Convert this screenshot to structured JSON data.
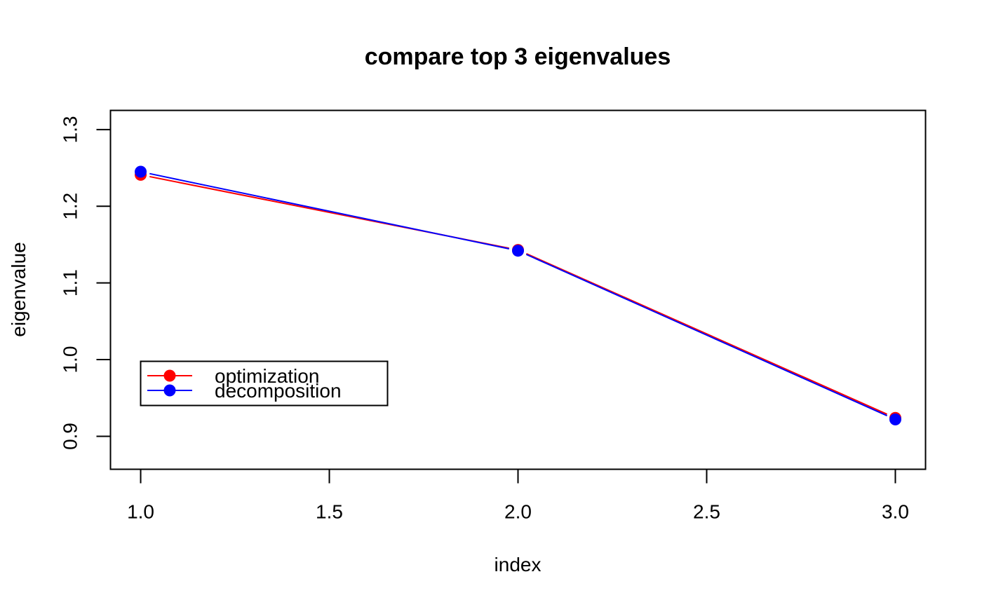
{
  "chart_data": {
    "type": "line",
    "title": "compare top 3 eigenvalues",
    "xlabel": "index",
    "ylabel": "eigenvalue",
    "x": [
      1,
      2,
      3
    ],
    "xlim": [
      0.92,
      3.08
    ],
    "ylim": [
      0.857,
      1.325
    ],
    "xticks": [
      "1.0",
      "1.5",
      "2.0",
      "2.5",
      "3.0"
    ],
    "yticks": [
      "0.9",
      "1.0",
      "1.1",
      "1.2",
      "1.3"
    ],
    "grid": false,
    "legend_position": "bottom-left",
    "series": [
      {
        "name": "optimization",
        "color": "#ff0000",
        "values": [
          1.241,
          1.143,
          0.924
        ]
      },
      {
        "name": "decomposition",
        "color": "#0000ff",
        "values": [
          1.245,
          1.142,
          0.922
        ]
      }
    ]
  }
}
